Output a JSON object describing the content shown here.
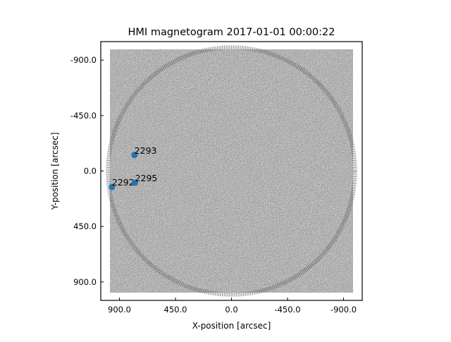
{
  "chart_data": {
    "type": "scatter",
    "title": "HMI magnetogram 2017-01-01 00:00:22",
    "xlabel": "X-position [arcsec]",
    "ylabel": "Y-position [arcsec]",
    "xlim": [
      1050,
      -1050
    ],
    "ylim": [
      -1050,
      1050
    ],
    "x_ticks": [
      900,
      450,
      0,
      -450,
      -900
    ],
    "x_tick_labels": [
      "900.0",
      "450.0",
      "0.0",
      "-450.0",
      "-900.0"
    ],
    "y_ticks": [
      -900,
      -450,
      0,
      450,
      900
    ],
    "y_tick_labels": [
      "-900.0",
      "-450.0",
      "0.0",
      "450.0",
      "900.0"
    ],
    "solar_radius_arcsec": 975,
    "grid": false,
    "marker_color": "#1f77b4",
    "points": [
      {
        "label": "2292",
        "x": 960,
        "y": 130
      },
      {
        "label": "2295",
        "x": 775,
        "y": 95
      },
      {
        "label": "2293",
        "x": 780,
        "y": -130
      }
    ]
  }
}
